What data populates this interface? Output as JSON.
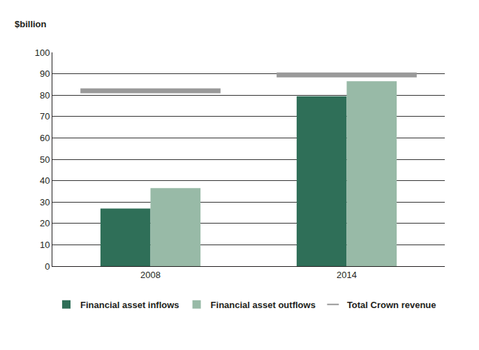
{
  "chart_data": {
    "type": "bar",
    "y_label": "$billion",
    "categories": [
      "2008",
      "2014"
    ],
    "series": [
      {
        "name": "Financial asset inflows",
        "color": "#2f6f58",
        "values": [
          27,
          79.5
        ]
      },
      {
        "name": "Financial asset outflows",
        "color": "#98baa7",
        "values": [
          36.5,
          86.5
        ]
      },
      {
        "name": "Total Crown revenue",
        "color": "#999999",
        "type": "scatter",
        "marker": "line-ew",
        "values": [
          82,
          89.5
        ]
      }
    ],
    "ylim": [
      0,
      100
    ],
    "yticks": [
      0,
      10,
      20,
      30,
      40,
      50,
      60,
      70,
      80,
      90,
      100
    ],
    "grid": true,
    "legend": "bottom"
  }
}
